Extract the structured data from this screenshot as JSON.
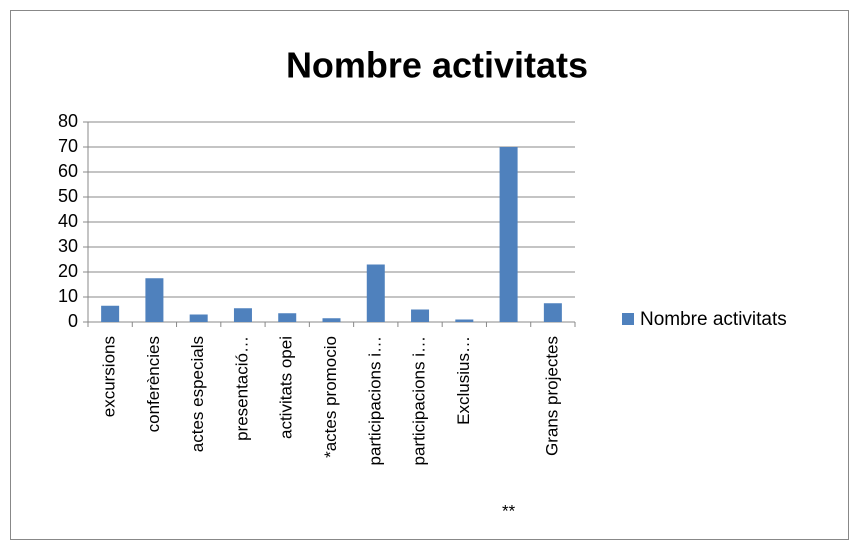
{
  "chart_data": {
    "type": "bar",
    "title": "Nombre activitats",
    "categories": [
      "excursions",
      "conferències",
      "actes especials",
      "presentació…",
      "activitats opei",
      "*actes promocio",
      "participacions i…",
      "participacions i…",
      "Exclusius…",
      "**",
      "Grans projectes"
    ],
    "series": [
      {
        "name": "Nombre activitats",
        "color": "#4f81bd",
        "values": [
          6.5,
          17.5,
          3,
          5.5,
          3.5,
          1.5,
          23,
          5,
          1,
          70,
          7.5
        ]
      }
    ],
    "ylim": [
      0,
      80
    ],
    "yticks": [
      0,
      10,
      20,
      30,
      40,
      50,
      60,
      70,
      80
    ],
    "grid": true,
    "legend": "right"
  }
}
